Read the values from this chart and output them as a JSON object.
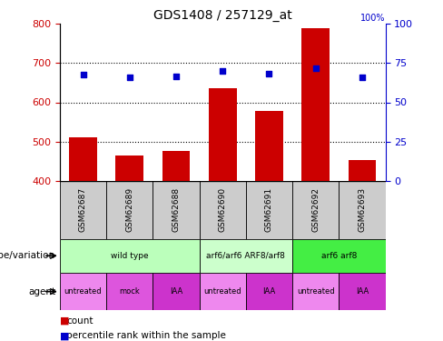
{
  "title": "GDS1408 / 257129_at",
  "samples": [
    "GSM62687",
    "GSM62689",
    "GSM62688",
    "GSM62690",
    "GSM62691",
    "GSM62692",
    "GSM62693"
  ],
  "bar_values": [
    510,
    465,
    475,
    635,
    578,
    790,
    453
  ],
  "bar_bottom": 400,
  "percentile_values": [
    67.5,
    66.0,
    66.5,
    70.0,
    68.5,
    72.0,
    66.0
  ],
  "ylim_left": [
    400,
    800
  ],
  "ylim_right": [
    0,
    100
  ],
  "yticks_left": [
    400,
    500,
    600,
    700,
    800
  ],
  "yticks_right": [
    0,
    25,
    50,
    75,
    100
  ],
  "bar_color": "#cc0000",
  "dot_color": "#0000cc",
  "bar_width": 0.6,
  "genotype_groups": [
    {
      "label": "wild type",
      "span": [
        0,
        3
      ],
      "color": "#bbffbb"
    },
    {
      "label": "arf6/arf6 ARF8/arf8",
      "span": [
        3,
        5
      ],
      "color": "#ccffcc"
    },
    {
      "label": "arf6 arf8",
      "span": [
        5,
        7
      ],
      "color": "#44ee44"
    }
  ],
  "agent_groups": [
    {
      "label": "untreated",
      "span": [
        0,
        1
      ],
      "color": "#ee88ee"
    },
    {
      "label": "mock",
      "span": [
        1,
        2
      ],
      "color": "#dd55dd"
    },
    {
      "label": "IAA",
      "span": [
        2,
        3
      ],
      "color": "#cc33cc"
    },
    {
      "label": "untreated",
      "span": [
        3,
        4
      ],
      "color": "#ee88ee"
    },
    {
      "label": "IAA",
      "span": [
        4,
        5
      ],
      "color": "#cc33cc"
    },
    {
      "label": "untreated",
      "span": [
        5,
        6
      ],
      "color": "#ee88ee"
    },
    {
      "label": "IAA",
      "span": [
        6,
        7
      ],
      "color": "#cc33cc"
    }
  ],
  "legend_items": [
    {
      "label": "count",
      "color": "#cc0000"
    },
    {
      "label": "percentile rank within the sample",
      "color": "#0000cc"
    }
  ],
  "left_color": "#cc0000",
  "right_color": "#0000cc",
  "sample_box_color": "#cccccc",
  "grid_dotted_at": [
    500,
    600,
    700
  ]
}
